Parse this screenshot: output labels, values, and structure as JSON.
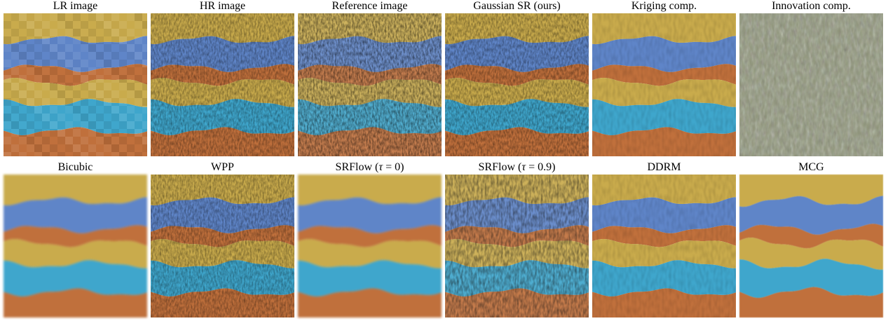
{
  "panels": [
    {
      "caption": "LR image",
      "style": "pixelated"
    },
    {
      "caption": "HR image",
      "style": "texture"
    },
    {
      "caption": "Reference image",
      "style": "texture-dark"
    },
    {
      "caption": "Gaussian SR (ours)",
      "style": "texture"
    },
    {
      "caption": "Kriging comp.",
      "style": "smooth"
    },
    {
      "caption": "Innovation comp.",
      "style": "noise"
    },
    {
      "caption": "Bicubic",
      "style": "blur"
    },
    {
      "caption": "WPP",
      "style": "texture"
    },
    {
      "caption_pre": "SRFlow (",
      "caption_sym": "τ",
      "caption_post": " = 0)",
      "style": "blur"
    },
    {
      "caption_pre": "SRFlow (",
      "caption_sym": "τ",
      "caption_post": " = 0.9)",
      "style": "texture-strong"
    },
    {
      "caption": "DDRM",
      "style": "smooth"
    },
    {
      "caption": "MCG",
      "style": "flat"
    }
  ],
  "stripe_colors": {
    "yellow": "#c9ab4c",
    "blue": "#5f85c8",
    "orange": "#c0703c",
    "cyan": "#3fa6cc",
    "gray": "#8e9478"
  }
}
